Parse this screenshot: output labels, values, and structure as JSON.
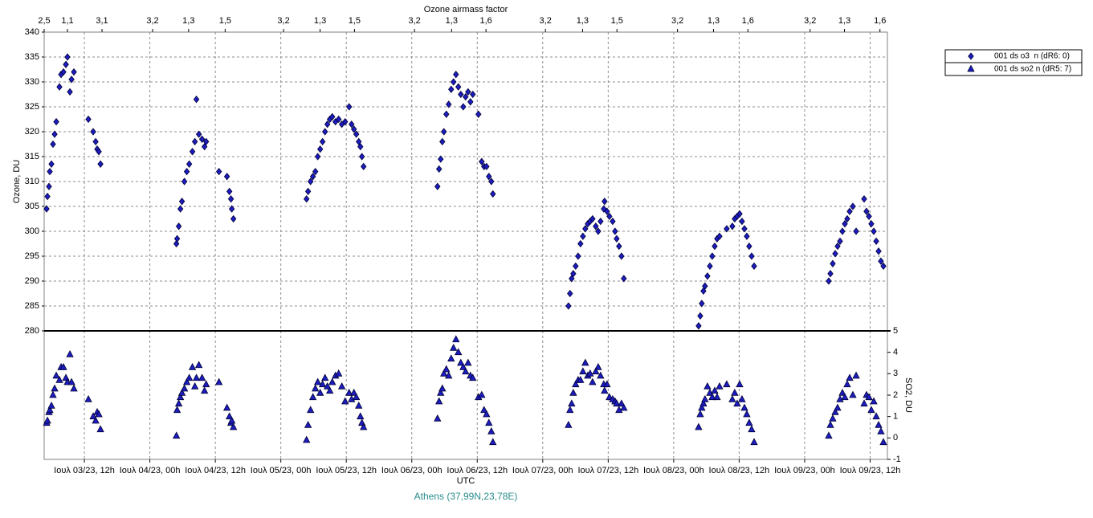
{
  "chart_data": {
    "type": "scatter",
    "x_title_top": "Ozone airmass factor",
    "x_label": "UTC",
    "y_label": "Ozone, DU",
    "y2_label": "SO2, DU",
    "caption": "Athens (37,99N,23,78E)",
    "grid": true,
    "legend": "right",
    "xlim": [
      "2023-07-03 04:38",
      "2023-07-09 15:10"
    ],
    "xticks": [
      {
        "value": "2023-07-03 12:00",
        "label": "Ιουλ 03/23, 12h"
      },
      {
        "value": "2023-07-04 00:00",
        "label": "Ιουλ 04/23, 00h"
      },
      {
        "value": "2023-07-04 12:00",
        "label": "Ιουλ 04/23, 12h"
      },
      {
        "value": "2023-07-05 00:00",
        "label": "Ιουλ 05/23, 00h"
      },
      {
        "value": "2023-07-05 12:00",
        "label": "Ιουλ 05/23, 12h"
      },
      {
        "value": "2023-07-06 00:00",
        "label": "Ιουλ 06/23, 00h"
      },
      {
        "value": "2023-07-06 12:00",
        "label": "Ιουλ 06/23, 12h"
      },
      {
        "value": "2023-07-07 00:00",
        "label": "Ιουλ 07/23, 00h"
      },
      {
        "value": "2023-07-07 12:00",
        "label": "Ιουλ 07/23, 12h"
      },
      {
        "value": "2023-07-08 00:00",
        "label": "Ιουλ 08/23, 00h"
      },
      {
        "value": "2023-07-08 12:00",
        "label": "Ιουλ 08/23, 12h"
      },
      {
        "value": "2023-07-09 00:00",
        "label": "Ιουλ 09/23, 00h"
      },
      {
        "value": "2023-07-09 12:00",
        "label": "Ιουλ 09/23, 12h"
      }
    ],
    "airmass_ticks": [
      {
        "value": "2023-07-03 04:38",
        "label": "2,5"
      },
      {
        "value": "2023-07-03 08:54",
        "label": "1,1"
      },
      {
        "value": "2023-07-03 15:14",
        "label": "3,1"
      },
      {
        "value": "2023-07-04 00:30",
        "label": "3,2"
      },
      {
        "value": "2023-07-04 07:06",
        "label": "1,3"
      },
      {
        "value": "2023-07-04 13:48",
        "label": "1,5"
      },
      {
        "value": "2023-07-05 00:30",
        "label": "3,2"
      },
      {
        "value": "2023-07-05 07:12",
        "label": "1,3"
      },
      {
        "value": "2023-07-05 13:30",
        "label": "1,5"
      },
      {
        "value": "2023-07-06 00:30",
        "label": "3,2"
      },
      {
        "value": "2023-07-06 07:18",
        "label": "1,3"
      },
      {
        "value": "2023-07-06 13:36",
        "label": "1,6"
      },
      {
        "value": "2023-07-07 00:30",
        "label": "3,2"
      },
      {
        "value": "2023-07-07 07:18",
        "label": "1,3"
      },
      {
        "value": "2023-07-07 13:36",
        "label": "1,5"
      },
      {
        "value": "2023-07-08 00:42",
        "label": "3,2"
      },
      {
        "value": "2023-07-08 07:18",
        "label": "1,3"
      },
      {
        "value": "2023-07-08 13:36",
        "label": "1,6"
      },
      {
        "value": "2023-07-09 01:00",
        "label": "3,2"
      },
      {
        "value": "2023-07-09 07:18",
        "label": "1,3"
      },
      {
        "value": "2023-07-09 13:48",
        "label": "1,6"
      }
    ],
    "ylim": [
      280,
      340
    ],
    "yticks": [
      280,
      285,
      290,
      295,
      300,
      305,
      310,
      315,
      320,
      325,
      330,
      335,
      340
    ],
    "y2lim": [
      -1,
      5
    ],
    "y2ticks": [
      -1,
      0,
      1,
      2,
      3,
      4,
      5
    ],
    "x": [
      "2023-07-03 05:05",
      "2023-07-03 05:14",
      "2023-07-03 05:31",
      "2023-07-03 05:40",
      "2023-07-03 05:58",
      "2023-07-03 06:15",
      "2023-07-03 06:33",
      "2023-07-03 06:51",
      "2023-07-03 07:26",
      "2023-07-03 07:44",
      "2023-07-03 08:10",
      "2023-07-03 08:37",
      "2023-07-03 08:54",
      "2023-07-03 09:21",
      "2023-07-03 09:39",
      "2023-07-03 10:05",
      "2023-07-03 12:44",
      "2023-07-03 13:37",
      "2023-07-03 14:04",
      "2023-07-03 14:21",
      "2023-07-03 14:39",
      "2023-07-03 14:57",
      "2023-07-04 04:52",
      "2023-07-04 05:00",
      "2023-07-04 05:18",
      "2023-07-04 05:36",
      "2023-07-04 05:53",
      "2023-07-04 06:20",
      "2023-07-04 06:46",
      "2023-07-04 07:13",
      "2023-07-04 07:48",
      "2023-07-04 08:15",
      "2023-07-04 08:32",
      "2023-07-04 08:59",
      "2023-07-04 09:34",
      "2023-07-04 10:01",
      "2023-07-04 10:19",
      "2023-07-04 12:40",
      "2023-07-04 14:08",
      "2023-07-04 14:35",
      "2023-07-04 14:52",
      "2023-07-04 15:01",
      "2023-07-04 15:19",
      "2023-07-05 04:43",
      "2023-07-05 05:00",
      "2023-07-05 05:27",
      "2023-07-05 05:53",
      "2023-07-05 06:20",
      "2023-07-05 06:46",
      "2023-07-05 07:13",
      "2023-07-05 07:39",
      "2023-07-05 08:06",
      "2023-07-05 08:32",
      "2023-07-05 08:59",
      "2023-07-05 09:26",
      "2023-07-05 10:01",
      "2023-07-05 10:36",
      "2023-07-05 11:11",
      "2023-07-05 11:47",
      "2023-07-05 12:31",
      "2023-07-05 12:58",
      "2023-07-05 13:24",
      "2023-07-05 13:50",
      "2023-07-05 14:17",
      "2023-07-05 14:35",
      "2023-07-05 14:52",
      "2023-07-05 15:10",
      "2023-07-06 04:43",
      "2023-07-06 05:00",
      "2023-07-06 05:18",
      "2023-07-06 05:36",
      "2023-07-06 05:53",
      "2023-07-06 06:20",
      "2023-07-06 06:46",
      "2023-07-06 07:13",
      "2023-07-06 07:39",
      "2023-07-06 08:06",
      "2023-07-06 08:32",
      "2023-07-06 08:59",
      "2023-07-06 09:26",
      "2023-07-06 09:52",
      "2023-07-06 10:19",
      "2023-07-06 10:45",
      "2023-07-06 11:11",
      "2023-07-06 12:13",
      "2023-07-06 12:49",
      "2023-07-06 13:15",
      "2023-07-06 13:42",
      "2023-07-06 14:08",
      "2023-07-06 14:35",
      "2023-07-06 14:52",
      "2023-07-07 04:43",
      "2023-07-07 05:00",
      "2023-07-07 05:18",
      "2023-07-07 05:36",
      "2023-07-07 06:02",
      "2023-07-07 06:29",
      "2023-07-07 06:55",
      "2023-07-07 07:22",
      "2023-07-07 07:48",
      "2023-07-07 08:15",
      "2023-07-07 08:41",
      "2023-07-07 09:08",
      "2023-07-07 09:43",
      "2023-07-07 10:10",
      "2023-07-07 10:36",
      "2023-07-07 11:11",
      "2023-07-07 11:20",
      "2023-07-07 11:47",
      "2023-07-07 12:13",
      "2023-07-07 12:49",
      "2023-07-07 13:15",
      "2023-07-07 13:33",
      "2023-07-07 13:59",
      "2023-07-07 14:26",
      "2023-07-07 14:52",
      "2023-07-08 04:34",
      "2023-07-08 04:52",
      "2023-07-08 05:09",
      "2023-07-08 05:27",
      "2023-07-08 05:44",
      "2023-07-08 06:11",
      "2023-07-08 06:38",
      "2023-07-08 07:04",
      "2023-07-08 07:31",
      "2023-07-08 07:57",
      "2023-07-08 08:24",
      "2023-07-08 09:43",
      "2023-07-08 10:45",
      "2023-07-08 11:11",
      "2023-07-08 11:38",
      "2023-07-08 12:05",
      "2023-07-08 12:31",
      "2023-07-08 12:58",
      "2023-07-08 13:24",
      "2023-07-08 13:50",
      "2023-07-08 14:17",
      "2023-07-08 14:44",
      "2023-07-09 04:25",
      "2023-07-09 04:43",
      "2023-07-09 05:09",
      "2023-07-09 05:36",
      "2023-07-09 06:02",
      "2023-07-09 06:29",
      "2023-07-09 06:55",
      "2023-07-09 07:22",
      "2023-07-09 07:48",
      "2023-07-09 08:15",
      "2023-07-09 08:50",
      "2023-07-09 09:26",
      "2023-07-09 10:54",
      "2023-07-09 11:20",
      "2023-07-09 11:47",
      "2023-07-09 12:13",
      "2023-07-09 12:40",
      "2023-07-09 13:07",
      "2023-07-09 13:33",
      "2023-07-09 13:59",
      "2023-07-09 14:26"
    ],
    "series": [
      {
        "name": "001 ds o3  n (dR6: 0)",
        "color": "#1c1cc0",
        "marker": "diamond",
        "values": [
          304.5,
          307,
          309,
          312,
          313.5,
          317.5,
          319.5,
          322,
          329,
          331.5,
          332,
          333.5,
          335,
          328,
          330.5,
          332,
          322.5,
          320,
          318,
          316.5,
          316,
          313.5,
          297.5,
          298.5,
          301,
          304.5,
          306,
          310,
          312,
          313.5,
          316,
          318,
          326.5,
          319.5,
          318.5,
          317,
          318,
          312,
          311,
          308,
          306.5,
          304.5,
          302.5,
          306.5,
          308,
          310,
          311,
          312,
          315,
          316.5,
          318,
          320,
          321.5,
          322.5,
          323,
          322,
          322.5,
          321.5,
          322,
          325,
          321.5,
          320.5,
          319.5,
          318,
          317,
          315,
          313,
          309,
          312.5,
          314.5,
          318,
          320,
          323.5,
          325.5,
          328.5,
          330,
          331.5,
          329,
          327.5,
          325,
          327,
          328,
          326,
          327.5,
          323.5,
          314,
          313,
          313,
          311,
          310,
          307.5,
          285,
          287.5,
          290.5,
          291.5,
          293,
          295,
          297.5,
          299,
          300.5,
          301.5,
          302,
          302.5,
          301,
          300,
          302,
          304.5,
          306,
          304,
          303,
          302,
          300,
          298.5,
          297,
          295,
          290.5,
          281,
          283,
          285.5,
          288,
          289,
          291,
          293,
          295,
          297,
          298.5,
          299,
          300.5,
          301,
          302.5,
          303,
          303.5,
          302,
          300.5,
          299,
          297,
          295,
          293,
          290,
          291.5,
          293.5,
          295.5,
          297,
          298,
          300,
          301.5,
          302.5,
          304,
          305,
          300,
          306.5,
          304,
          303,
          301.5,
          300,
          298,
          296,
          294,
          293
        ]
      },
      {
        "name": "001 ds so2 n (dR5: 7)",
        "color": "#1c1cc0",
        "marker": "triangle",
        "axis": "y2",
        "values": [
          0.7,
          0.8,
          1.2,
          1.3,
          1.5,
          2,
          2.3,
          2.9,
          2.7,
          3.3,
          3.3,
          2.8,
          2.6,
          3.9,
          2.6,
          2.3,
          1.8,
          1,
          0.8,
          1.2,
          1.1,
          0.4,
          0.1,
          1.3,
          1.6,
          1.9,
          2.1,
          2.3,
          2.6,
          2.8,
          3.3,
          2.4,
          2.8,
          3.4,
          2.8,
          2.2,
          2.5,
          2.6,
          1.4,
          1,
          0.7,
          0.8,
          0.5,
          -0.1,
          0.6,
          1.3,
          1.9,
          2.3,
          2.6,
          2.1,
          2.5,
          2.8,
          2.4,
          2.2,
          2.6,
          2.9,
          3,
          2.4,
          1.7,
          2.1,
          1.8,
          2.1,
          1.9,
          1.5,
          1,
          0.7,
          0.5,
          0.9,
          1.7,
          2.1,
          2.3,
          3,
          3.2,
          2.9,
          3.7,
          4.2,
          4.6,
          4,
          3.5,
          3.3,
          3.1,
          3.5,
          2.9,
          2.8,
          1.9,
          2,
          1.3,
          1.1,
          0.7,
          0.3,
          -0.2,
          0.6,
          1.3,
          1.6,
          2.1,
          2.5,
          2.7,
          2.7,
          3.1,
          3.5,
          2.9,
          3,
          2.6,
          3.1,
          3.3,
          2.9,
          2.5,
          2.2,
          2.5,
          1.9,
          1.8,
          1.7,
          1.6,
          1.3,
          1.6,
          1.4,
          0.5,
          1.1,
          1.4,
          1.6,
          1.8,
          2.4,
          2.1,
          1.9,
          2.2,
          1.9,
          2.4,
          2.5,
          1.8,
          2.1,
          1.6,
          2.5,
          1.8,
          1.4,
          1.1,
          0.7,
          0.4,
          -0.2,
          0.1,
          0.6,
          0.9,
          1.2,
          1.4,
          1.8,
          2.1,
          1.9,
          2.5,
          2.8,
          2,
          2.9,
          1.6,
          2,
          1.9,
          1.3,
          1.7,
          1,
          0.6,
          0.3,
          -0.2
        ]
      }
    ]
  }
}
